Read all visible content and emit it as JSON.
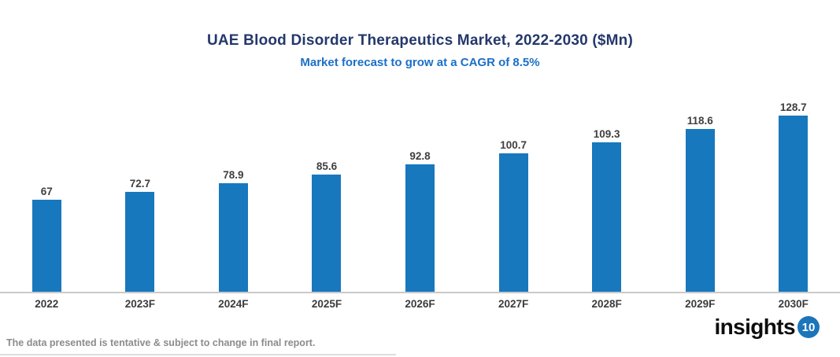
{
  "header": {
    "title": "UAE Blood Disorder Therapeutics Market, 2022-2030 ($Mn)",
    "subtitle": "Market forecast to grow at a CAGR of 8.5%"
  },
  "chart_data": {
    "type": "bar",
    "title": "UAE Blood Disorder Therapeutics Market, 2022-2030 ($Mn)",
    "subtitle": "Market forecast to grow at a CAGR of 8.5%",
    "categories": [
      "2022",
      "2023F",
      "2024F",
      "2025F",
      "2026F",
      "2027F",
      "2028F",
      "2029F",
      "2030F"
    ],
    "values": [
      67,
      72.7,
      78.9,
      85.6,
      92.8,
      100.7,
      109.3,
      118.6,
      128.7
    ],
    "xlabel": "",
    "ylabel": "",
    "ylim": [
      0,
      140
    ],
    "grid": false,
    "legend": false,
    "value_labels_shown": true,
    "cagr": "8.5%"
  },
  "footer": {
    "disclaimer": "The data presented is tentative & subject to change in final report.",
    "logo_text": "insights",
    "logo_badge": "10"
  },
  "colors": {
    "title_color": "#24386B",
    "subtitle_color": "#1B6FC8",
    "bar_color": "#1878BE",
    "axis_line_color": "#C9C9C9",
    "value_label_color": "#3F3F3F",
    "tick_label_color": "#3B3B3B",
    "disclaimer_color": "#8C8C8C",
    "divider_color": "#DEDEDE",
    "logo_badge_color": "#1B75BB"
  }
}
